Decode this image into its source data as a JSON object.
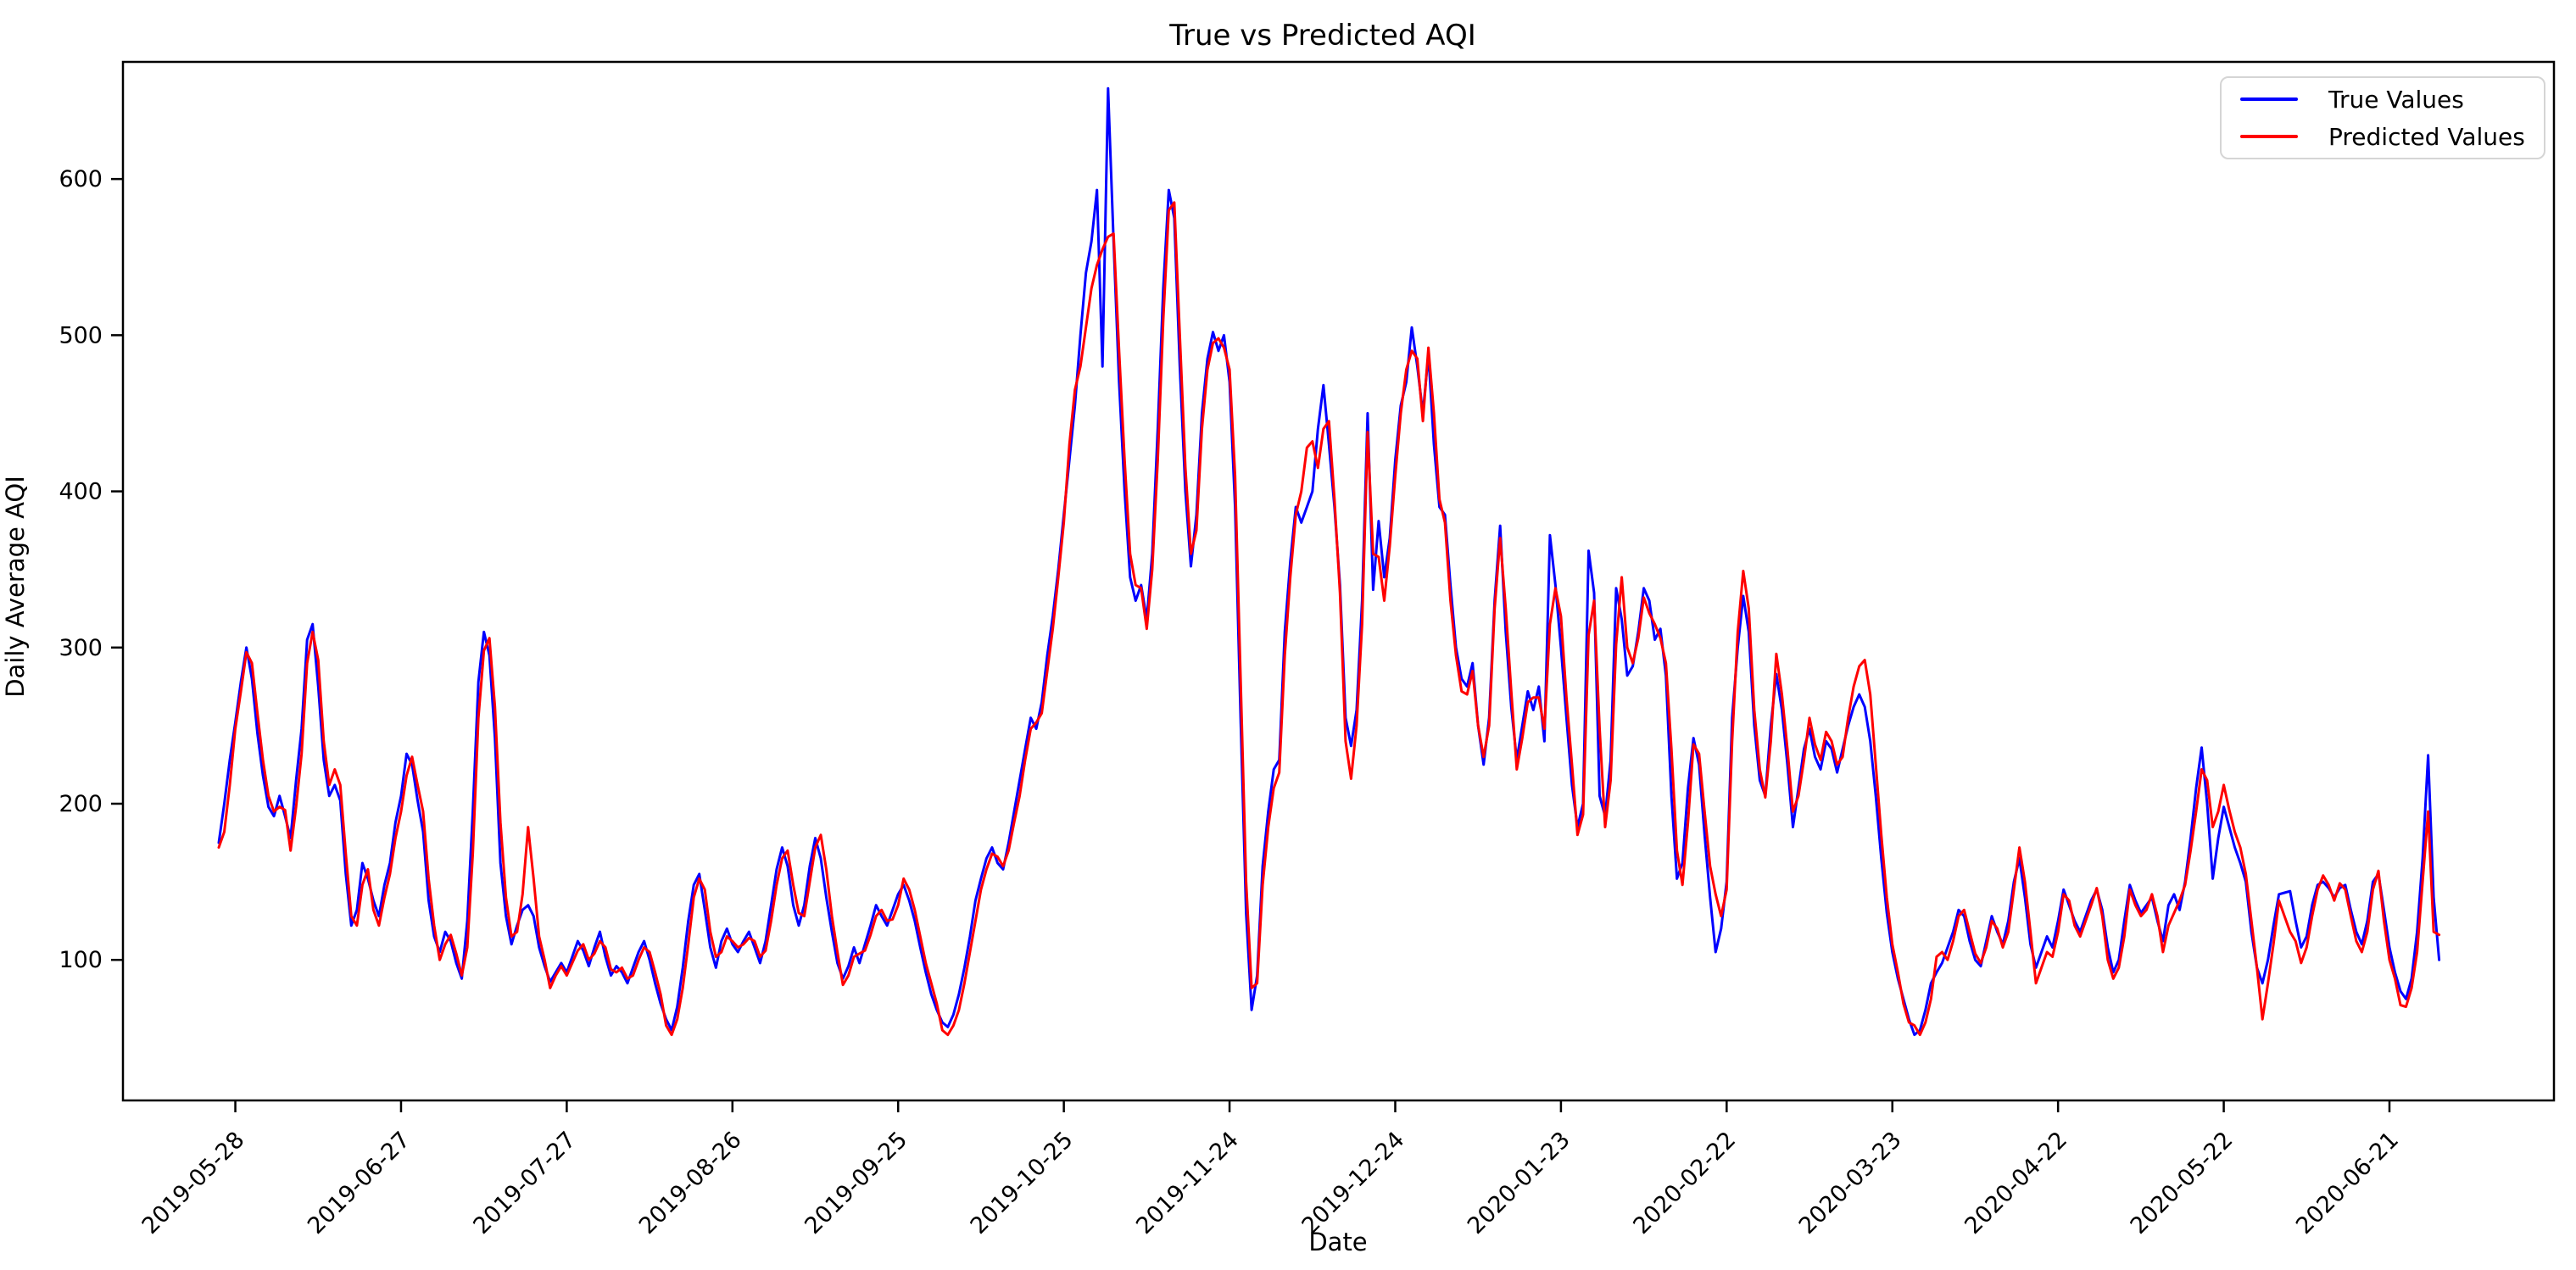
{
  "figure": {
    "title": "True vs Predicted AQI",
    "xlabel": "Date",
    "ylabel": "Daily Average AQI"
  },
  "legend": {
    "items": [
      {
        "label": "True Values",
        "color": "#0000ff"
      },
      {
        "label": "Predicted Values",
        "color": "#ff0000"
      }
    ]
  },
  "chart_data": {
    "type": "line",
    "title": "True vs Predicted AQI",
    "xlabel": "Date",
    "ylabel": "Daily Average AQI",
    "grid": false,
    "legend_position": "upper right",
    "start_date": "2019-05-25",
    "cadence_days": 1,
    "x_tick_labels": [
      "2019-05-28",
      "2019-06-27",
      "2019-07-27",
      "2019-08-26",
      "2019-09-25",
      "2019-10-25",
      "2019-11-24",
      "2019-12-24",
      "2020-01-23",
      "2020-02-22",
      "2020-03-23",
      "2020-04-22",
      "2020-05-22",
      "2020-06-21"
    ],
    "y_ticks": [
      100,
      200,
      300,
      400,
      500,
      600
    ],
    "ylim": [
      10,
      675
    ],
    "series": [
      {
        "name": "True Values",
        "color": "#0000ff",
        "values": [
          175,
          200,
          228,
          252,
          278,
          300,
          280,
          245,
          218,
          198,
          192,
          205,
          192,
          178,
          215,
          248,
          305,
          315,
          275,
          228,
          205,
          212,
          202,
          155,
          122,
          132,
          162,
          152,
          138,
          128,
          148,
          162,
          188,
          205,
          232,
          225,
          202,
          182,
          138,
          115,
          105,
          118,
          112,
          98,
          88,
          125,
          195,
          278,
          310,
          295,
          242,
          162,
          128,
          110,
          122,
          132,
          135,
          128,
          108,
          96,
          86,
          92,
          98,
          92,
          102,
          112,
          106,
          96,
          108,
          118,
          102,
          90,
          96,
          92,
          85,
          95,
          105,
          112,
          100,
          85,
          72,
          62,
          55,
          70,
          95,
          125,
          148,
          155,
          132,
          108,
          95,
          112,
          120,
          110,
          105,
          112,
          118,
          108,
          98,
          112,
          135,
          158,
          172,
          160,
          135,
          122,
          135,
          160,
          178,
          165,
          140,
          118,
          98,
          88,
          96,
          108,
          98,
          110,
          122,
          135,
          128,
          122,
          132,
          142,
          148,
          138,
          125,
          108,
          92,
          78,
          68,
          60,
          57,
          65,
          78,
          95,
          115,
          138,
          152,
          165,
          172,
          162,
          158,
          175,
          195,
          215,
          235,
          255,
          248,
          265,
          295,
          320,
          350,
          385,
          420,
          455,
          500,
          540,
          560,
          593,
          480,
          658,
          560,
          470,
          400,
          345,
          330,
          340,
          318,
          360,
          440,
          530,
          593,
          575,
          480,
          400,
          352,
          385,
          450,
          485,
          502,
          490,
          500,
          470,
          390,
          255,
          130,
          68,
          90,
          160,
          195,
          222,
          228,
          310,
          355,
          390,
          380,
          390,
          400,
          440,
          468,
          430,
          390,
          340,
          255,
          237,
          260,
          330,
          450,
          337,
          381,
          345,
          370,
          420,
          455,
          470,
          505,
          480,
          450,
          488,
          430,
          390,
          385,
          340,
          300,
          280,
          275,
          290,
          250,
          225,
          255,
          330,
          378,
          310,
          262,
          228,
          250,
          272,
          260,
          275,
          240,
          372,
          340,
          300,
          255,
          212,
          185,
          200,
          362,
          335,
          205,
          192,
          228,
          338,
          318,
          282,
          288,
          310,
          338,
          330,
          305,
          312,
          282,
          205,
          152,
          162,
          210,
          242,
          225,
          180,
          140,
          105,
          120,
          150,
          255,
          300,
          333,
          310,
          250,
          215,
          205,
          250,
          283,
          260,
          225,
          185,
          210,
          235,
          248,
          230,
          222,
          240,
          235,
          220,
          235,
          250,
          262,
          270,
          262,
          240,
          205,
          165,
          130,
          105,
          88,
          75,
          62,
          52,
          55,
          68,
          85,
          92,
          98,
          108,
          118,
          132,
          128,
          112,
          100,
          96,
          112,
          128,
          118,
          110,
          125,
          150,
          165,
          140,
          110,
          95,
          105,
          115,
          108,
          125,
          145,
          135,
          125,
          118,
          128,
          138,
          145,
          132,
          108,
          92,
          100,
          125,
          148,
          138,
          130,
          135,
          140,
          125,
          112,
          135,
          142,
          132,
          150,
          178,
          210,
          236,
          200,
          152,
          178,
          198,
          185,
          172,
          162,
          150,
          118,
          95,
          85,
          100,
          122,
          142,
          143,
          144,
          125,
          108,
          115,
          135,
          148,
          150,
          146,
          140,
          146,
          148,
          132,
          118,
          110,
          125,
          150,
          155,
          132,
          108,
          92,
          80,
          75,
          88,
          118,
          165,
          231,
          140,
          100
        ]
      },
      {
        "name": "Predicted Values",
        "color": "#ff0000",
        "values": [
          172,
          182,
          212,
          248,
          272,
          297,
          290,
          258,
          228,
          205,
          195,
          198,
          196,
          170,
          198,
          232,
          290,
          310,
          292,
          240,
          212,
          222,
          212,
          168,
          128,
          122,
          148,
          158,
          132,
          122,
          140,
          155,
          178,
          195,
          218,
          230,
          212,
          195,
          152,
          122,
          100,
          110,
          116,
          104,
          90,
          108,
          168,
          255,
          298,
          306,
          262,
          188,
          140,
          115,
          118,
          142,
          185,
          152,
          115,
          100,
          82,
          90,
          96,
          90,
          98,
          106,
          110,
          100,
          104,
          112,
          108,
          94,
          92,
          95,
          88,
          90,
          100,
          108,
          105,
          92,
          78,
          58,
          52,
          62,
          82,
          110,
          140,
          152,
          145,
          118,
          102,
          105,
          115,
          112,
          108,
          110,
          114,
          112,
          102,
          106,
          125,
          148,
          165,
          170,
          148,
          130,
          128,
          150,
          172,
          180,
          158,
          128,
          105,
          84,
          90,
          102,
          104,
          106,
          116,
          128,
          132,
          125,
          126,
          135,
          152,
          145,
          132,
          115,
          98,
          85,
          72,
          55,
          52,
          58,
          68,
          85,
          105,
          125,
          145,
          158,
          168,
          166,
          160,
          170,
          188,
          205,
          228,
          248,
          252,
          258,
          285,
          312,
          345,
          380,
          430,
          465,
          480,
          505,
          530,
          545,
          555,
          563,
          565,
          490,
          420,
          360,
          340,
          338,
          312,
          350,
          420,
          510,
          580,
          585,
          500,
          415,
          360,
          375,
          440,
          478,
          495,
          498,
          492,
          478,
          410,
          280,
          150,
          82,
          85,
          148,
          185,
          210,
          220,
          295,
          345,
          385,
          400,
          428,
          432,
          415,
          440,
          445,
          395,
          335,
          240,
          216,
          250,
          315,
          438,
          360,
          358,
          330,
          365,
          410,
          450,
          478,
          490,
          485,
          445,
          492,
          450,
          395,
          380,
          330,
          295,
          272,
          270,
          285,
          250,
          230,
          250,
          325,
          370,
          325,
          272,
          222,
          242,
          265,
          268,
          268,
          248,
          315,
          338,
          320,
          268,
          225,
          180,
          193,
          308,
          330,
          248,
          185,
          215,
          302,
          345,
          300,
          290,
          306,
          332,
          322,
          315,
          306,
          290,
          235,
          170,
          148,
          188,
          238,
          232,
          195,
          160,
          142,
          128,
          145,
          240,
          310,
          349,
          325,
          260,
          222,
          204,
          240,
          296,
          270,
          235,
          195,
          205,
          228,
          255,
          238,
          228,
          246,
          240,
          225,
          230,
          255,
          275,
          288,
          292,
          270,
          225,
          180,
          140,
          110,
          92,
          72,
          60,
          58,
          52,
          60,
          75,
          102,
          105,
          100,
          112,
          128,
          132,
          118,
          104,
          98,
          108,
          125,
          120,
          108,
          118,
          145,
          172,
          150,
          118,
          85,
          95,
          105,
          102,
          118,
          142,
          138,
          122,
          115,
          125,
          135,
          146,
          128,
          100,
          88,
          95,
          115,
          145,
          135,
          128,
          132,
          142,
          128,
          105,
          122,
          130,
          138,
          148,
          170,
          195,
          222,
          215,
          185,
          195,
          212,
          196,
          182,
          172,
          155,
          125,
          95,
          62,
          85,
          110,
          138,
          128,
          118,
          112,
          98,
          108,
          128,
          145,
          154,
          148,
          138,
          149,
          145,
          128,
          112,
          105,
          118,
          145,
          157,
          125,
          100,
          88,
          71,
          70,
          82,
          105,
          150,
          195,
          118,
          116
        ]
      }
    ]
  }
}
